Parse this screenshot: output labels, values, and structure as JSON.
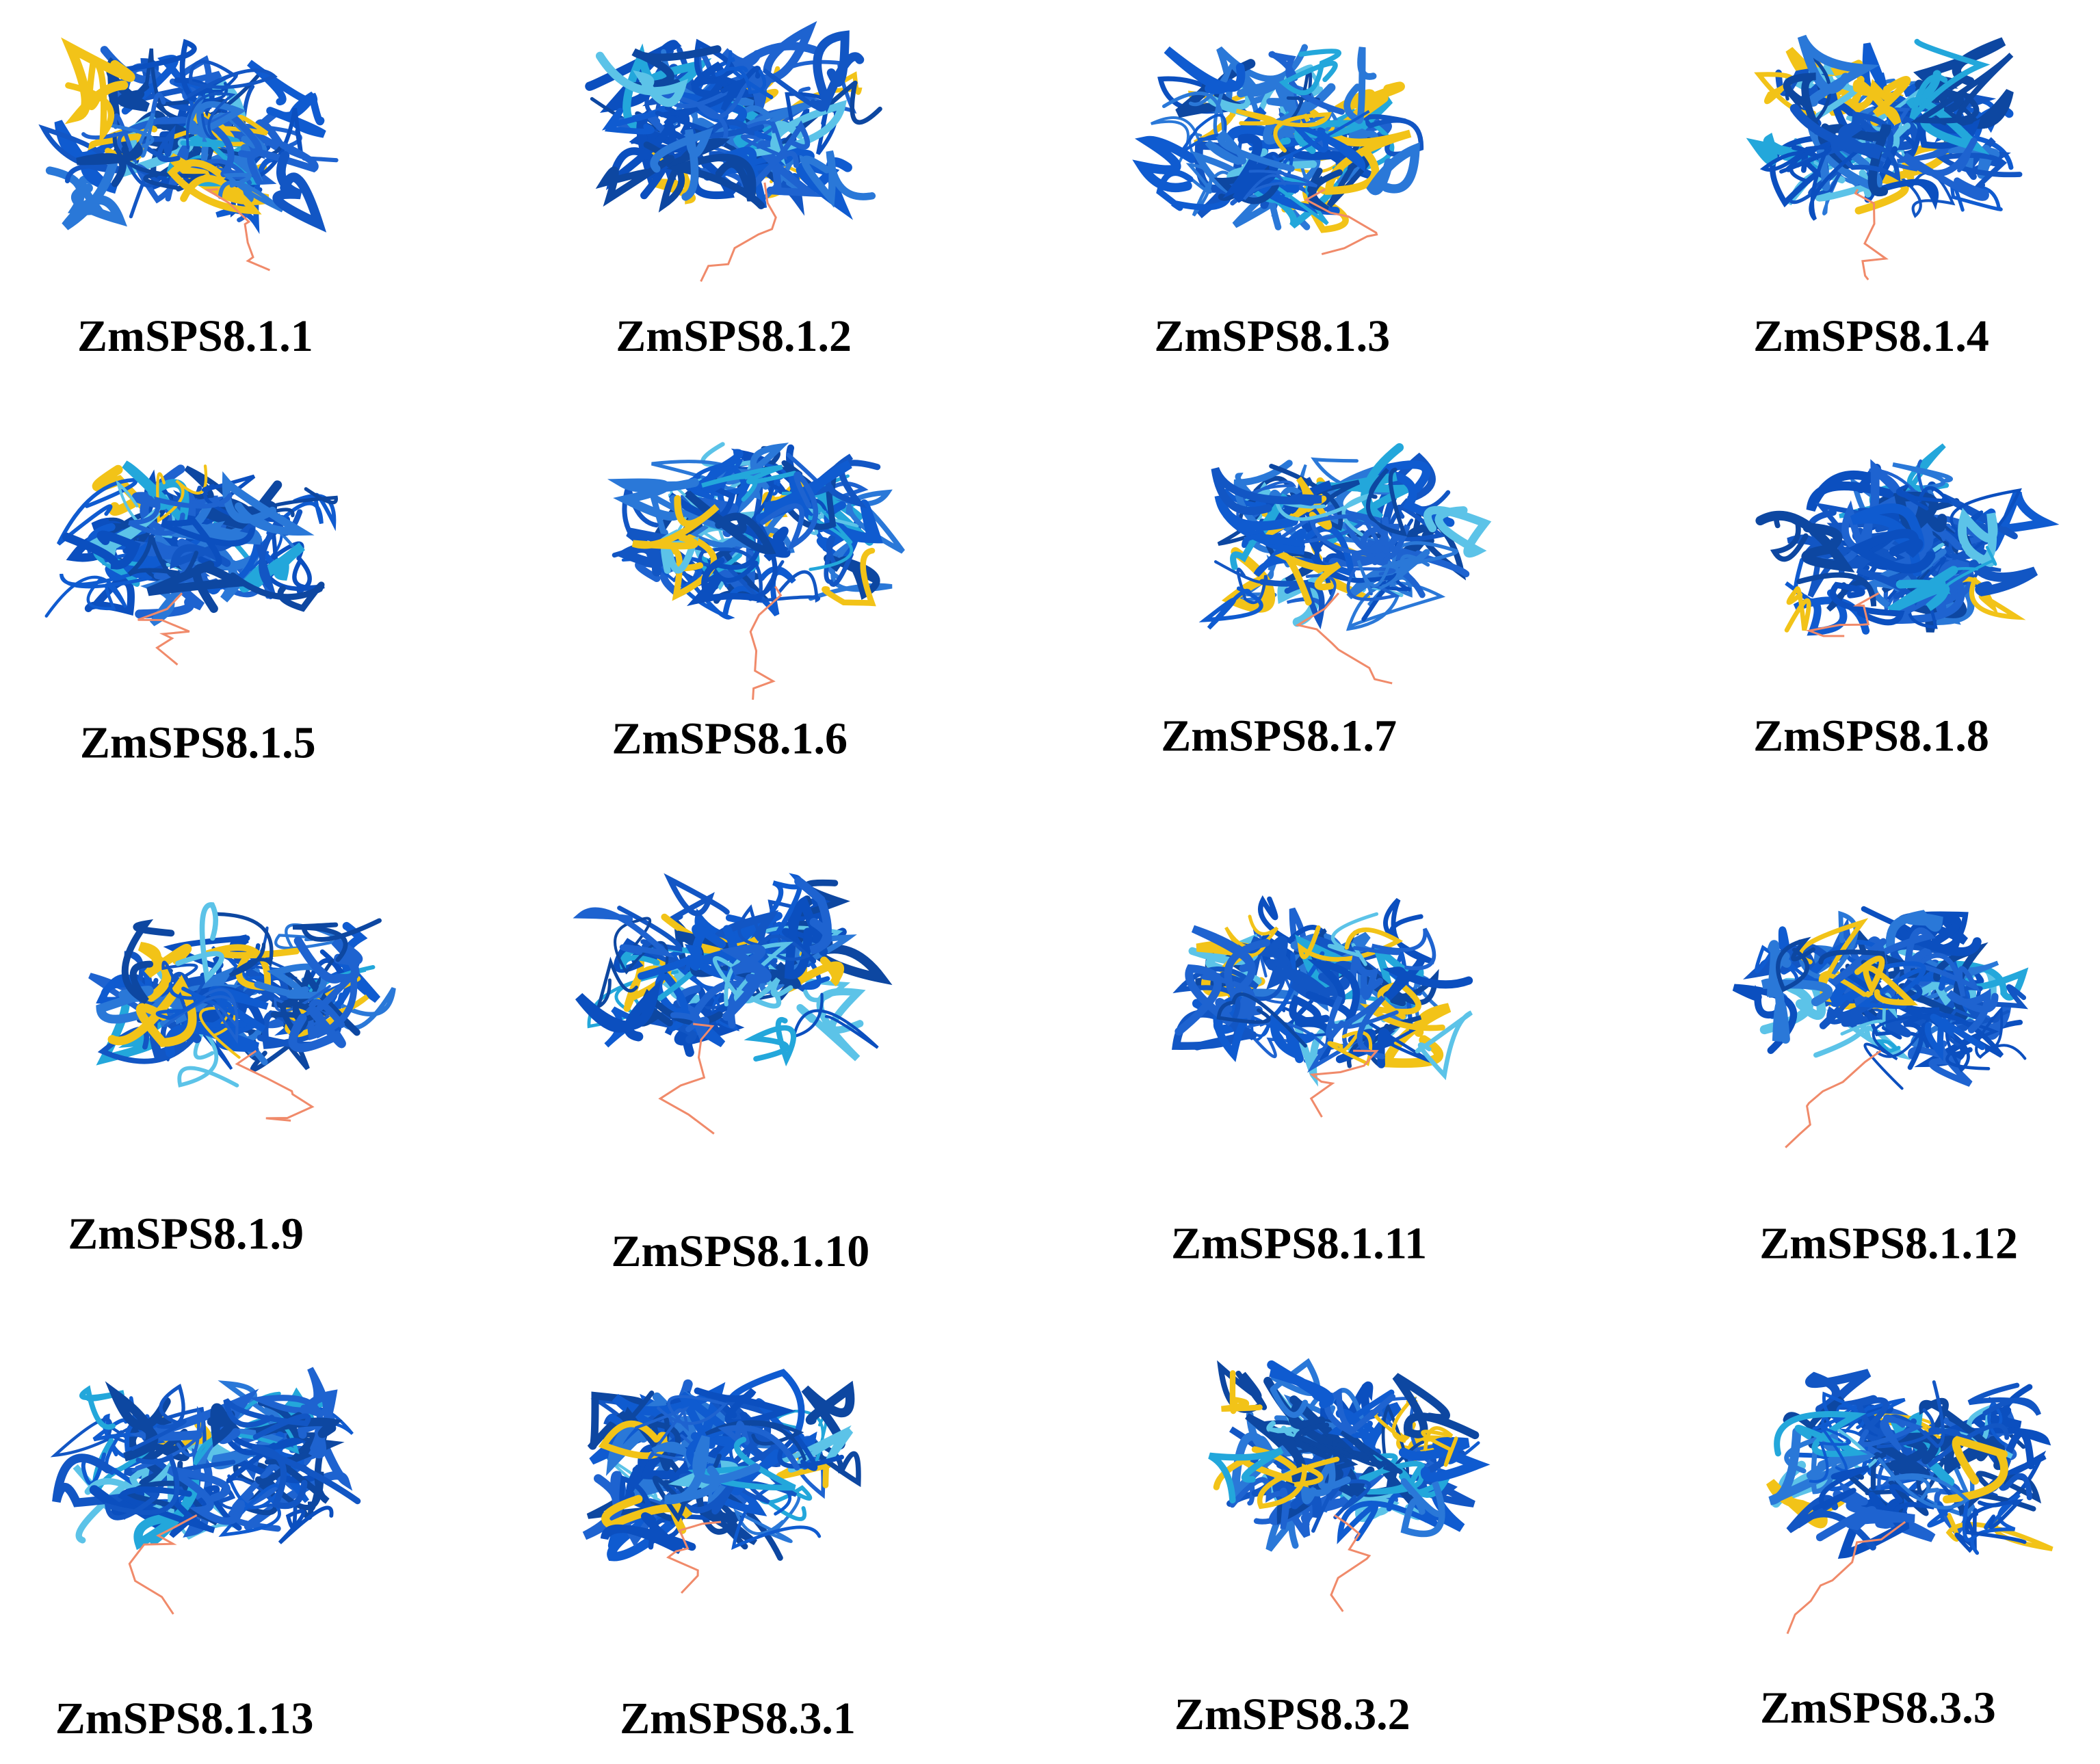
{
  "panels": [
    {
      "label": "ZmSPS8.1.1"
    },
    {
      "label": "ZmSPS8.1.2"
    },
    {
      "label": "ZmSPS8.1.3"
    },
    {
      "label": "ZmSPS8.1.4"
    },
    {
      "label": "ZmSPS8.1.5"
    },
    {
      "label": "ZmSPS8.1.6"
    },
    {
      "label": "ZmSPS8.1.7"
    },
    {
      "label": "ZmSPS8.1.8"
    },
    {
      "label": "ZmSPS8.1.9"
    },
    {
      "label": "ZmSPS8.1.10"
    },
    {
      "label": "ZmSPS8.1.11"
    },
    {
      "label": "ZmSPS8.1.12"
    },
    {
      "label": "ZmSPS8.1.13"
    },
    {
      "label": "ZmSPS8.3.1"
    },
    {
      "label": "ZmSPS8.3.2"
    },
    {
      "label": "ZmSPS8.3.3"
    }
  ]
}
